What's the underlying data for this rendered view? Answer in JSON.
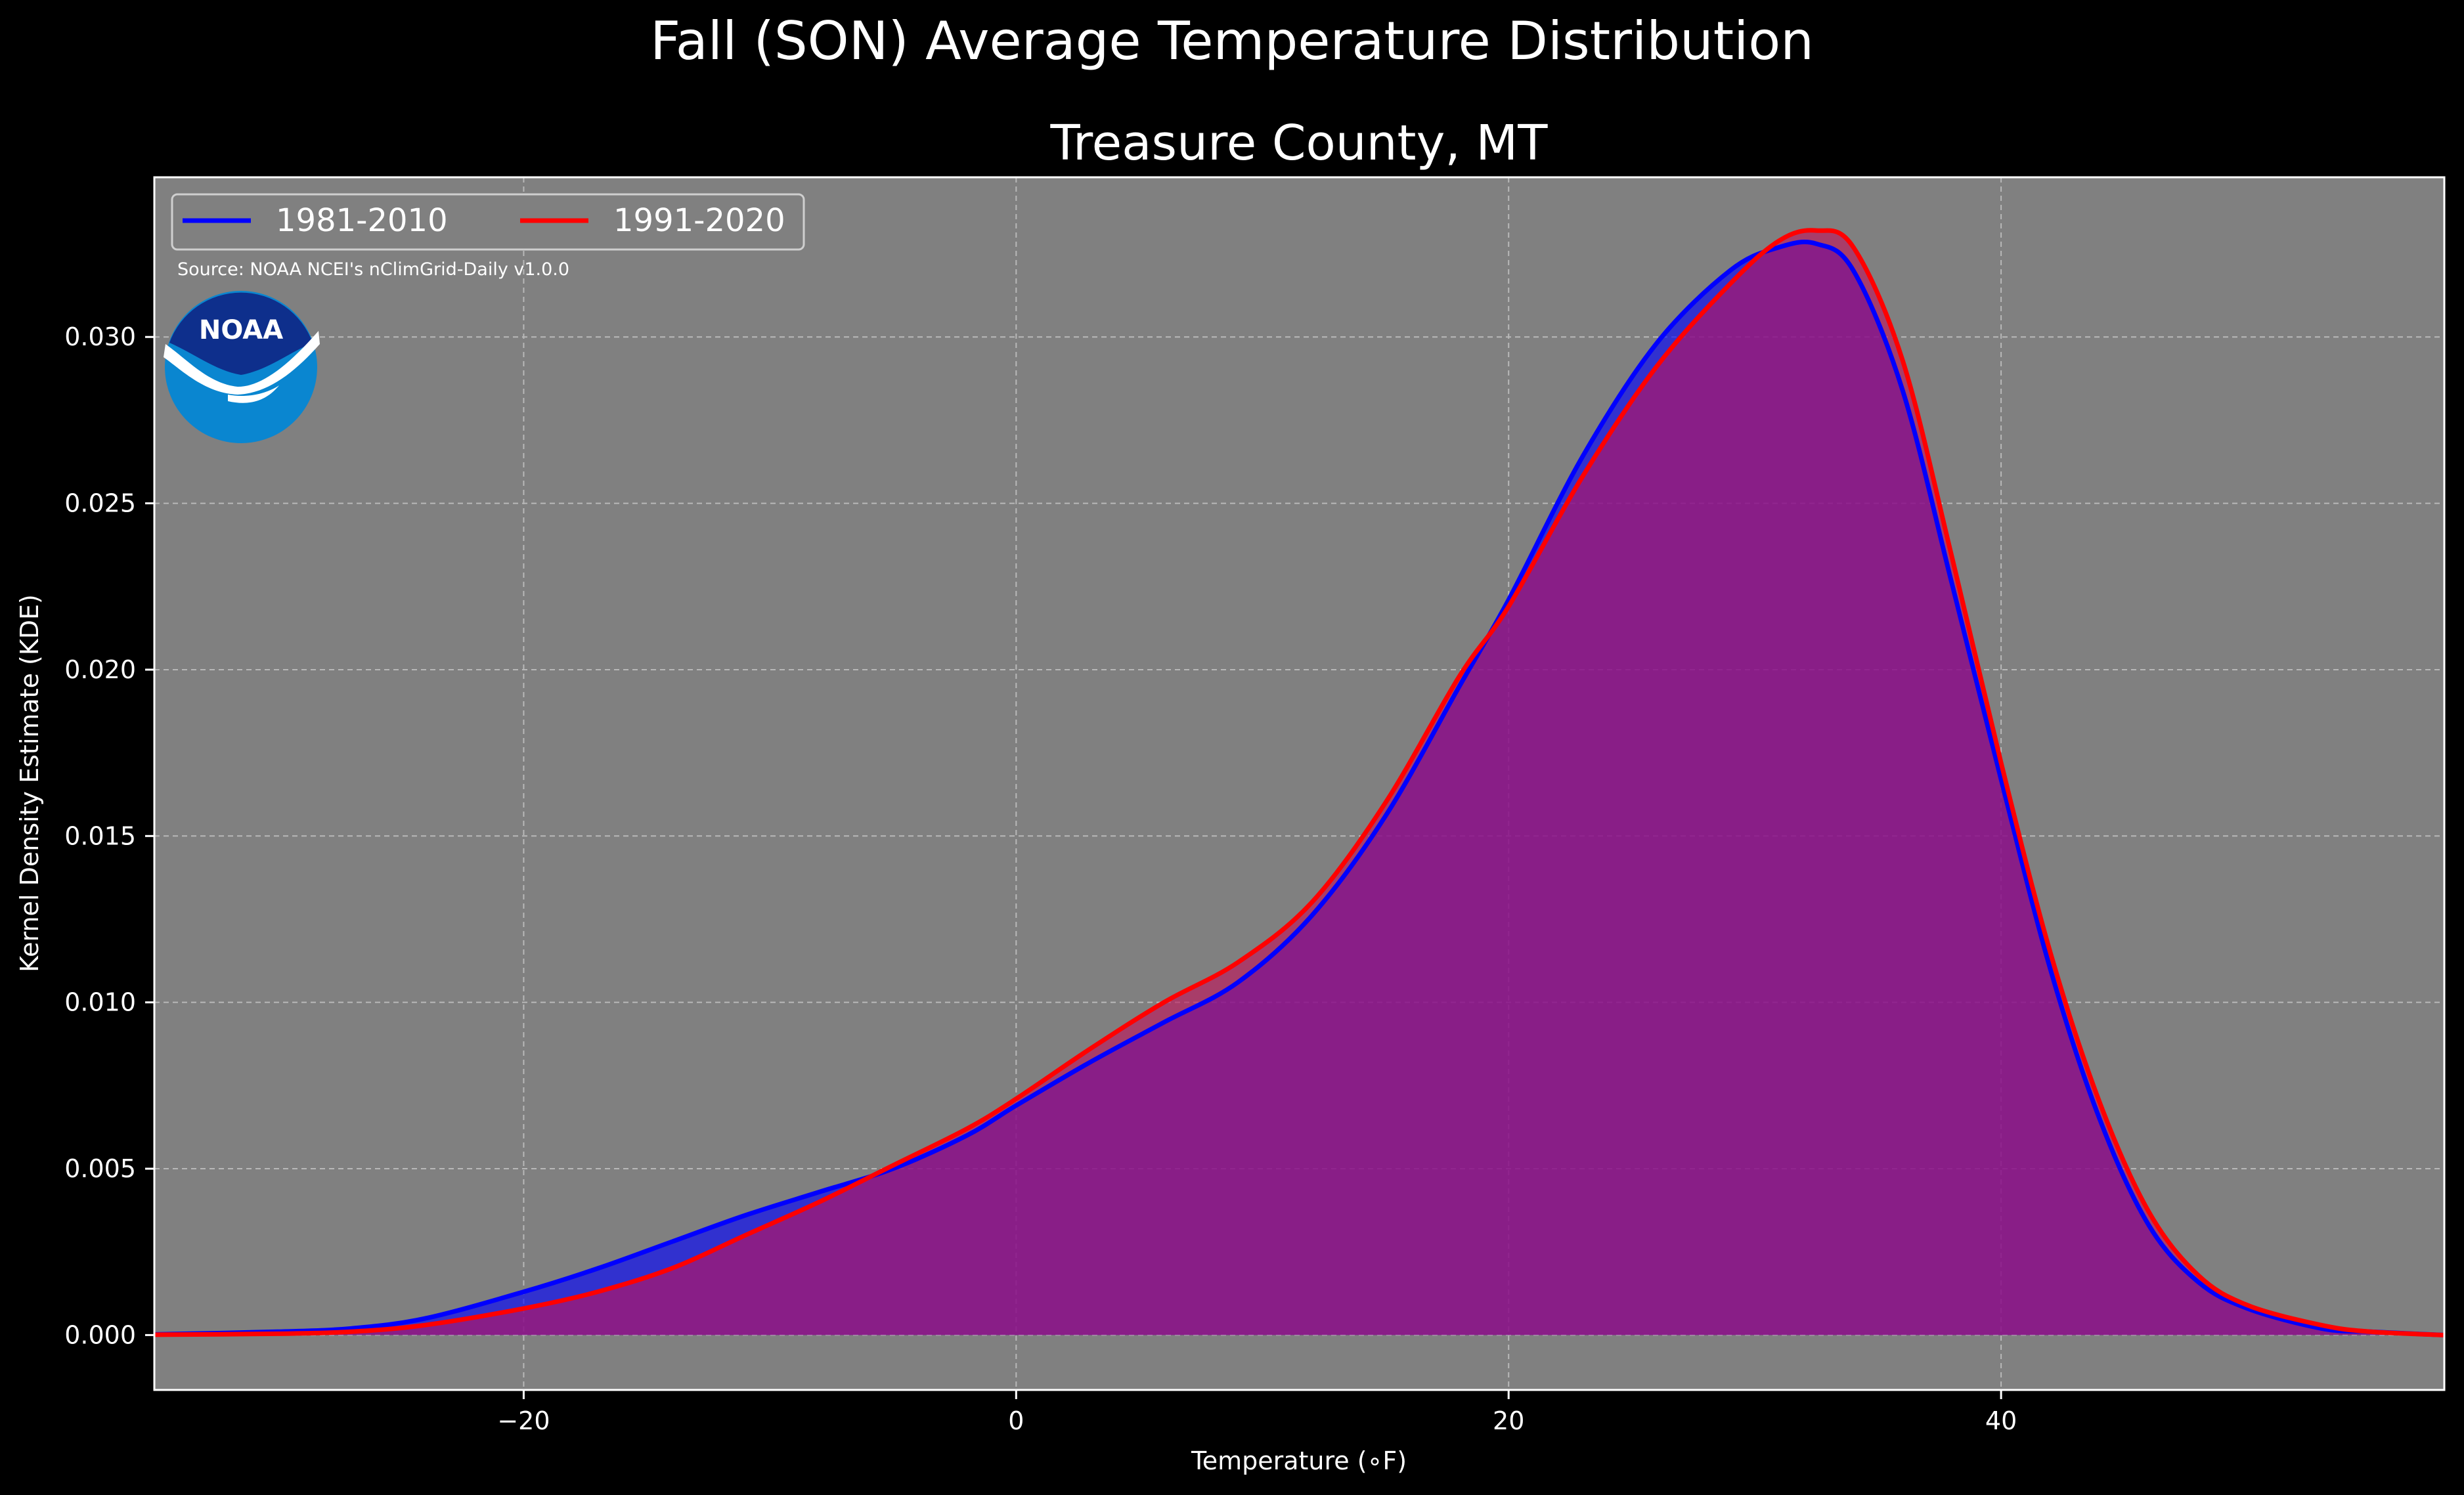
{
  "figure": {
    "suptitle": "Fall (SON) Average Temperature Distribution",
    "background": "#000000"
  },
  "chart_data": {
    "type": "area",
    "title": "Treasure County, MT",
    "xlabel": "Temperature (∘F)",
    "ylabel": "Kernel Density Estimate (KDE)",
    "xlim": [
      -35,
      58
    ],
    "ylim": [
      -0.00165,
      0.0348
    ],
    "x_ticks": [
      -20,
      0,
      20,
      40
    ],
    "x_tick_labels": [
      "−20",
      "0",
      "20",
      "40"
    ],
    "y_ticks": [
      0.0,
      0.005,
      0.01,
      0.015,
      0.02,
      0.025,
      0.03
    ],
    "y_tick_labels": [
      "0.000",
      "0.005",
      "0.010",
      "0.015",
      "0.020",
      "0.025",
      "0.030"
    ],
    "grid": true,
    "plot_background": "#808080",
    "legend_placement": "top-left",
    "source_note": "Source: NOAA NCEI's nClimGrid-Daily v1.0.0",
    "logo_text": "NOAA",
    "x": [
      -35,
      -30,
      -27,
      -24,
      -20,
      -17,
      -14,
      -11,
      -8,
      -5,
      -2,
      0,
      3,
      6,
      9,
      12,
      15,
      18,
      20,
      23,
      26,
      29,
      31,
      32.5,
      34,
      36,
      38,
      40,
      42,
      44,
      46,
      48,
      50,
      53,
      55,
      58
    ],
    "series": [
      {
        "name": "1981-2010",
        "color": "#0000ff",
        "fill": "#0000ff",
        "values": [
          2e-05,
          0.0001,
          0.0002,
          0.0005,
          0.0013,
          0.002,
          0.0028,
          0.0036,
          0.0043,
          0.005,
          0.006,
          0.0069,
          0.0082,
          0.0094,
          0.0106,
          0.0126,
          0.0156,
          0.0195,
          0.0221,
          0.0264,
          0.0298,
          0.032,
          0.0327,
          0.0328,
          0.032,
          0.0284,
          0.0226,
          0.0167,
          0.011,
          0.0065,
          0.0033,
          0.0016,
          0.0008,
          0.0002,
          0.0001,
          0.0
        ]
      },
      {
        "name": "1991-2020",
        "color": "#ff0000",
        "fill": "#c0145a",
        "values": [
          1e-05,
          4e-05,
          0.0001,
          0.0003,
          0.0008,
          0.0013,
          0.002,
          0.003,
          0.004,
          0.0051,
          0.0062,
          0.0071,
          0.0086,
          0.01,
          0.0112,
          0.013,
          0.016,
          0.0198,
          0.0219,
          0.0258,
          0.0291,
          0.0316,
          0.0329,
          0.0332,
          0.0327,
          0.0293,
          0.0234,
          0.0172,
          0.0115,
          0.007,
          0.0037,
          0.0018,
          0.0009,
          0.0003,
          0.0001,
          0.0
        ]
      }
    ]
  }
}
